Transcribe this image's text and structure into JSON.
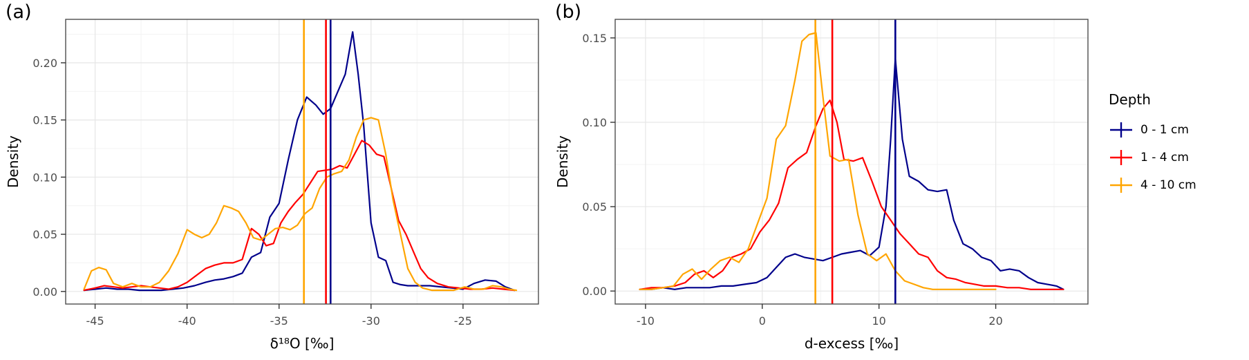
{
  "theme": {
    "background": "#ffffff",
    "grid_major": "#e6e6e6",
    "grid_minor": "#f3f3f3",
    "panel_border": "#4d4d4d",
    "tick_color": "#333333",
    "tick_label_color": "#4d4d4d",
    "text_color": "#000000"
  },
  "legend": {
    "title": "Depth",
    "items": [
      {
        "label": "0 - 1 cm",
        "color": "#00008B"
      },
      {
        "label": "1 - 4 cm",
        "color": "#FF0000"
      },
      {
        "label": "4 - 10 cm",
        "color": "#FFA500"
      }
    ]
  },
  "chart_data": [
    {
      "type": "line",
      "panel_label": "(a)",
      "title": "",
      "xlabel": "δ¹⁸O [‰]",
      "ylabel": "Density",
      "xlim": [
        -46.6,
        -20.9
      ],
      "ylim": [
        -0.011,
        0.238
      ],
      "xticks": [
        -45,
        -40,
        -35,
        -30,
        -25
      ],
      "yticks": [
        0,
        0.05,
        0.1,
        0.15,
        0.2
      ],
      "xminor": [
        -42.5,
        -37.5,
        -32.5,
        -27.5,
        -22.5
      ],
      "yminor": [
        0.025,
        0.075,
        0.125,
        0.175,
        0.225
      ],
      "grid": true,
      "legend_position": "right",
      "vlines": [
        {
          "x": -33.65,
          "color": "#FFA500"
        },
        {
          "x": -32.45,
          "color": "#FF0000"
        },
        {
          "x": -32.2,
          "color": "#00008B"
        }
      ],
      "series": [
        {
          "name": "0 - 1 cm",
          "color": "#00008B",
          "x": [
            -45.6,
            -45,
            -44.4,
            -43.8,
            -43.2,
            -42.6,
            -42,
            -41.4,
            -40.8,
            -40.2,
            -39.6,
            -39,
            -38.5,
            -38,
            -37.5,
            -37,
            -36.5,
            -36,
            -35.5,
            -35,
            -34.5,
            -34,
            -33.5,
            -33,
            -32.6,
            -32.2,
            -31.8,
            -31.4,
            -31,
            -30.7,
            -30.4,
            -30,
            -29.6,
            -29.2,
            -28.8,
            -28.4,
            -28,
            -27.4,
            -26.8,
            -26.2,
            -25.6,
            -25,
            -24.4,
            -23.8,
            -23.2,
            -22.7,
            -22.2
          ],
          "y": [
            0.001,
            0.002,
            0.003,
            0.002,
            0.002,
            0.001,
            0.001,
            0.001,
            0.002,
            0.003,
            0.005,
            0.008,
            0.01,
            0.011,
            0.013,
            0.016,
            0.03,
            0.034,
            0.065,
            0.077,
            0.115,
            0.15,
            0.17,
            0.163,
            0.155,
            0.16,
            0.175,
            0.19,
            0.227,
            0.19,
            0.145,
            0.06,
            0.03,
            0.027,
            0.008,
            0.006,
            0.005,
            0.005,
            0.005,
            0.004,
            0.003,
            0.002,
            0.007,
            0.01,
            0.009,
            0.004,
            0.001
          ]
        },
        {
          "name": "1 - 4 cm",
          "color": "#FF0000",
          "x": [
            -45.6,
            -45,
            -44.5,
            -44,
            -43.5,
            -43,
            -42.5,
            -42,
            -41.5,
            -41,
            -40.5,
            -40,
            -39.5,
            -39,
            -38.5,
            -38,
            -37.5,
            -37,
            -36.5,
            -36.1,
            -35.7,
            -35.3,
            -34.9,
            -34.5,
            -34.1,
            -33.7,
            -33.3,
            -32.9,
            -32.5,
            -32.1,
            -31.7,
            -31.3,
            -30.9,
            -30.5,
            -30.1,
            -29.7,
            -29.3,
            -28.9,
            -28.5,
            -28.1,
            -27.7,
            -27.3,
            -26.9,
            -26.4,
            -25.8,
            -25.2,
            -24.6,
            -24,
            -23.4,
            -22.8,
            -22.2
          ],
          "y": [
            0.001,
            0.003,
            0.005,
            0.004,
            0.003,
            0.004,
            0.005,
            0.004,
            0.003,
            0.002,
            0.004,
            0.008,
            0.014,
            0.02,
            0.023,
            0.025,
            0.025,
            0.028,
            0.055,
            0.05,
            0.04,
            0.042,
            0.06,
            0.07,
            0.078,
            0.085,
            0.095,
            0.105,
            0.106,
            0.107,
            0.11,
            0.108,
            0.12,
            0.132,
            0.128,
            0.12,
            0.118,
            0.09,
            0.062,
            0.05,
            0.035,
            0.02,
            0.012,
            0.007,
            0.004,
            0.003,
            0.002,
            0.002,
            0.003,
            0.002,
            0.001
          ]
        },
        {
          "name": "4 - 10 cm",
          "color": "#FFA500",
          "x": [
            -45.6,
            -45.2,
            -44.8,
            -44.4,
            -44,
            -43.5,
            -43,
            -42.5,
            -42,
            -41.5,
            -41,
            -40.5,
            -40,
            -39.6,
            -39.2,
            -38.8,
            -38.4,
            -38,
            -37.6,
            -37.2,
            -36.8,
            -36.4,
            -36,
            -35.6,
            -35.2,
            -34.8,
            -34.4,
            -34,
            -33.6,
            -33.2,
            -32.8,
            -32.4,
            -32,
            -31.6,
            -31.2,
            -30.8,
            -30.4,
            -30,
            -29.6,
            -29.2,
            -28.8,
            -28.4,
            -28,
            -27.6,
            -27.2,
            -26.7,
            -26.1,
            -25.5,
            -24.9,
            -24.4,
            -23.9,
            -23.4,
            -22.9,
            -22.5,
            -22.1
          ],
          "y": [
            0.002,
            0.018,
            0.021,
            0.019,
            0.007,
            0.004,
            0.007,
            0.004,
            0.004,
            0.008,
            0.018,
            0.033,
            0.054,
            0.05,
            0.047,
            0.05,
            0.06,
            0.075,
            0.073,
            0.07,
            0.06,
            0.047,
            0.045,
            0.05,
            0.055,
            0.056,
            0.054,
            0.058,
            0.068,
            0.073,
            0.09,
            0.1,
            0.103,
            0.105,
            0.115,
            0.135,
            0.15,
            0.152,
            0.15,
            0.12,
            0.08,
            0.05,
            0.02,
            0.008,
            0.003,
            0.001,
            0.001,
            0.001,
            0.004,
            0.002,
            0.002,
            0.005,
            0.004,
            0.002,
            0.001
          ]
        }
      ]
    },
    {
      "type": "line",
      "panel_label": "(b)",
      "title": "",
      "xlabel": "d-excess [‰]",
      "ylabel": "Density",
      "xlim": [
        -12.6,
        27.9
      ],
      "ylim": [
        -0.0077,
        0.161
      ],
      "xticks": [
        -10,
        0,
        10,
        20
      ],
      "yticks": [
        0,
        0.05,
        0.1,
        0.15
      ],
      "xminor": [
        -5,
        5,
        15,
        25
      ],
      "yminor": [
        0.025,
        0.075,
        0.125
      ],
      "grid": true,
      "legend_position": "right",
      "vlines": [
        {
          "x": 4.55,
          "color": "#FFA500"
        },
        {
          "x": 6.0,
          "color": "#FF0000"
        },
        {
          "x": 11.4,
          "color": "#00008B"
        }
      ],
      "series": [
        {
          "name": "0 - 1 cm",
          "color": "#00008B",
          "x": [
            -10.5,
            -9.5,
            -8.5,
            -7.5,
            -6.5,
            -5.5,
            -4.5,
            -3.5,
            -2.5,
            -1.5,
            -0.5,
            0.4,
            1.2,
            2,
            2.8,
            3.6,
            4.4,
            5.2,
            6,
            6.8,
            7.6,
            8.4,
            9.2,
            10,
            10.6,
            11,
            11.4,
            12,
            12.6,
            13.4,
            14.2,
            15,
            15.8,
            16.4,
            17.2,
            18,
            18.8,
            19.6,
            20.4,
            21.2,
            22,
            22.8,
            23.6,
            24.4,
            25.2,
            25.8
          ],
          "y": [
            0.001,
            0.001,
            0.002,
            0.001,
            0.002,
            0.002,
            0.002,
            0.003,
            0.003,
            0.004,
            0.005,
            0.008,
            0.014,
            0.02,
            0.022,
            0.02,
            0.019,
            0.018,
            0.02,
            0.022,
            0.023,
            0.024,
            0.021,
            0.026,
            0.05,
            0.09,
            0.138,
            0.09,
            0.068,
            0.065,
            0.06,
            0.059,
            0.06,
            0.042,
            0.028,
            0.025,
            0.02,
            0.018,
            0.012,
            0.013,
            0.012,
            0.008,
            0.005,
            0.004,
            0.003,
            0.001
          ]
        },
        {
          "name": "1 - 4 cm",
          "color": "#FF0000",
          "x": [
            -10.5,
            -9.5,
            -8.5,
            -7.5,
            -6.6,
            -5.8,
            -5,
            -4.2,
            -3.4,
            -2.6,
            -1.8,
            -1,
            -0.2,
            0.6,
            1.4,
            2.2,
            3,
            3.8,
            4.6,
            5.2,
            5.8,
            6.4,
            7,
            7.8,
            8.6,
            9.4,
            10.2,
            11,
            11.8,
            12.6,
            13.4,
            14.2,
            15,
            15.8,
            16.6,
            17.4,
            18.2,
            19,
            20,
            21,
            22,
            23,
            24,
            25,
            25.8
          ],
          "y": [
            0.001,
            0.002,
            0.002,
            0.003,
            0.005,
            0.01,
            0.012,
            0.008,
            0.012,
            0.02,
            0.022,
            0.025,
            0.035,
            0.042,
            0.052,
            0.073,
            0.078,
            0.082,
            0.098,
            0.108,
            0.113,
            0.1,
            0.078,
            0.077,
            0.079,
            0.065,
            0.05,
            0.042,
            0.034,
            0.028,
            0.022,
            0.02,
            0.012,
            0.008,
            0.007,
            0.005,
            0.004,
            0.003,
            0.003,
            0.002,
            0.002,
            0.001,
            0.001,
            0.001,
            0.001
          ]
        },
        {
          "name": "4 - 10 cm",
          "color": "#FFA500",
          "x": [
            -10.5,
            -9.5,
            -8.5,
            -7.6,
            -6.8,
            -6,
            -5.2,
            -4.4,
            -3.6,
            -2.8,
            -2,
            -1.2,
            -0.4,
            0.4,
            1.2,
            2,
            2.8,
            3.4,
            4,
            4.6,
            5.2,
            5.8,
            6.6,
            7.4,
            8.2,
            9,
            9.8,
            10.6,
            11.4,
            12.2,
            13,
            13.8,
            14.6,
            15.4,
            16.2,
            17,
            18,
            19,
            20
          ],
          "y": [
            0.001,
            0.001,
            0.002,
            0.003,
            0.01,
            0.013,
            0.007,
            0.013,
            0.018,
            0.02,
            0.017,
            0.025,
            0.04,
            0.055,
            0.09,
            0.098,
            0.125,
            0.148,
            0.152,
            0.153,
            0.115,
            0.08,
            0.077,
            0.078,
            0.045,
            0.022,
            0.018,
            0.022,
            0.012,
            0.006,
            0.004,
            0.002,
            0.001,
            0.001,
            0.001,
            0.001,
            0.001,
            0.001,
            0.001
          ]
        }
      ]
    }
  ]
}
